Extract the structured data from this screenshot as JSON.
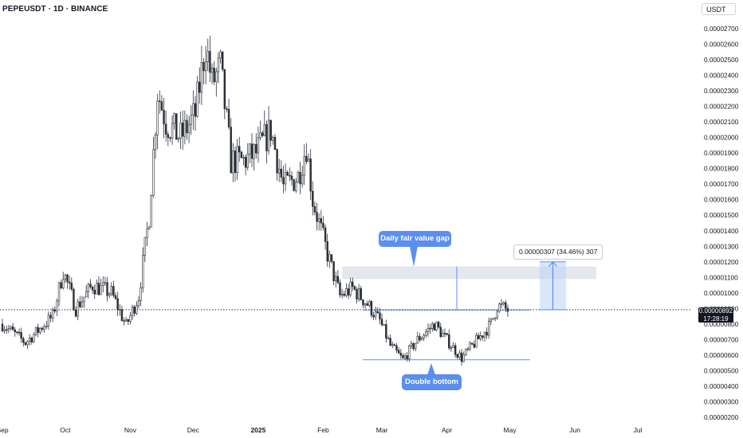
{
  "header": {
    "symbol_title": "PEPEUSDT · 1D · BINANCE",
    "currency": "USDT"
  },
  "annotations": {
    "fvg_label": "Daily fair value gap",
    "double_bottom_label": "Double bottom",
    "measure_label": "0.00000307 (34.46%) 307",
    "last_price": "0.00000892",
    "countdown": "17:28:19"
  },
  "colors": {
    "up": "#ffffff",
    "down": "#2b2f36",
    "wick": "#2b2f36",
    "accent": "#5a8ff1",
    "fvg_zone": "#e0e3eb",
    "measure_fill": "#bcd3f7",
    "axis_text": "#131722"
  },
  "chart_data": {
    "type": "candlestick",
    "title": "PEPEUSDT · 1D · BINANCE",
    "price_scale": "right",
    "ylim": [
      1.6e-06,
      2.86e-05
    ],
    "y_ticks": [
      "0.00002700",
      "0.00002600",
      "0.00002500",
      "0.00002400",
      "0.00002300",
      "0.00002200",
      "0.00002100",
      "0.00002000",
      "0.00001900",
      "0.00001800",
      "0.00001700",
      "0.00001600",
      "0.00001500",
      "0.00001400",
      "0.00001300",
      "0.00001200",
      "0.00001100",
      "0.00001000",
      "0.00000900",
      "0.00000800",
      "0.00000700",
      "0.00000600",
      "0.00000500",
      "0.00000400",
      "0.00000300",
      "0.00000200"
    ],
    "y_tick_values": [
      2.7e-05,
      2.6e-05,
      2.5e-05,
      2.4e-05,
      2.3e-05,
      2.2e-05,
      2.1e-05,
      2e-05,
      1.9e-05,
      1.8e-05,
      1.7e-05,
      1.6e-05,
      1.5e-05,
      1.4e-05,
      1.3e-05,
      1.2e-05,
      1.1e-05,
      1e-05,
      9e-06,
      8e-06,
      7e-06,
      6e-06,
      5e-06,
      4e-06,
      3e-06,
      2e-06
    ],
    "x_ticks": [
      "Sep",
      "Oct",
      "Nov",
      "Dec",
      "2025",
      "Feb",
      "Mar",
      "Apr",
      "May",
      "Jun",
      "Jul"
    ],
    "x_tick_dates": [
      "2024-09-01",
      "2024-10-01",
      "2024-11-01",
      "2024-12-01",
      "2025-01-01",
      "2025-02-01",
      "2025-03-01",
      "2025-04-01",
      "2025-05-01",
      "2025-06-01",
      "2025-07-01"
    ],
    "last_price": 8.92e-06,
    "fair_value_gap": {
      "from": 1.09e-05,
      "to": 1.17e-05
    },
    "double_bottom_level": 5.7e-06,
    "neckline_level": 8.9e-06,
    "measure_target": {
      "from": 8.92e-06,
      "to": 1.2e-05
    },
    "daily_anchors": [
      {
        "date": "2024-09-01",
        "price": 8e-06
      },
      {
        "date": "2024-09-12",
        "price": 6.8e-06
      },
      {
        "date": "2024-09-25",
        "price": 8.5e-06
      },
      {
        "date": "2024-09-30",
        "price": 1.14e-05
      },
      {
        "date": "2024-10-06",
        "price": 9e-06
      },
      {
        "date": "2024-10-14",
        "price": 1.05e-05
      },
      {
        "date": "2024-10-23",
        "price": 1e-05
      },
      {
        "date": "2024-10-30",
        "price": 7.9e-06
      },
      {
        "date": "2024-11-05",
        "price": 9.8e-06
      },
      {
        "date": "2024-11-10",
        "price": 1.5e-05
      },
      {
        "date": "2024-11-14",
        "price": 2.3e-05
      },
      {
        "date": "2024-11-18",
        "price": 2.1e-05
      },
      {
        "date": "2024-11-25",
        "price": 2e-05
      },
      {
        "date": "2024-12-02",
        "price": 2.15e-05
      },
      {
        "date": "2024-12-07",
        "price": 2.6e-05
      },
      {
        "date": "2024-12-10",
        "price": 2.35e-05
      },
      {
        "date": "2024-12-14",
        "price": 2.45e-05
      },
      {
        "date": "2024-12-19",
        "price": 1.85e-05
      },
      {
        "date": "2024-12-25",
        "price": 1.85e-05
      },
      {
        "date": "2024-12-31",
        "price": 1.9e-05
      },
      {
        "date": "2025-01-07",
        "price": 2.05e-05
      },
      {
        "date": "2025-01-13",
        "price": 1.68e-05
      },
      {
        "date": "2025-01-20",
        "price": 1.75e-05
      },
      {
        "date": "2025-01-24",
        "price": 1.95e-05
      },
      {
        "date": "2025-01-27",
        "price": 1.6e-05
      },
      {
        "date": "2025-02-03",
        "price": 1.25e-05
      },
      {
        "date": "2025-02-09",
        "price": 9.8e-06
      },
      {
        "date": "2025-02-15",
        "price": 1.03e-05
      },
      {
        "date": "2025-02-22",
        "price": 9.3e-06
      },
      {
        "date": "2025-02-28",
        "price": 8.2e-06
      },
      {
        "date": "2025-03-05",
        "price": 6.6e-06
      },
      {
        "date": "2025-03-11",
        "price": 5.7e-06
      },
      {
        "date": "2025-03-18",
        "price": 7e-06
      },
      {
        "date": "2025-03-26",
        "price": 8e-06
      },
      {
        "date": "2025-04-02",
        "price": 6.8e-06
      },
      {
        "date": "2025-04-08",
        "price": 5.8e-06
      },
      {
        "date": "2025-04-15",
        "price": 6.9e-06
      },
      {
        "date": "2025-04-22",
        "price": 8e-06
      },
      {
        "date": "2025-04-25",
        "price": 9.2e-06
      },
      {
        "date": "2025-04-30",
        "price": 8.9e-06
      }
    ]
  }
}
